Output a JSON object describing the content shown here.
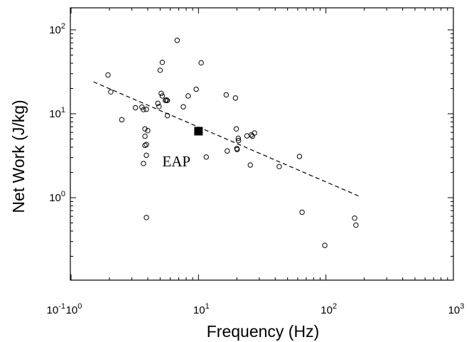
{
  "chart_data": {
    "type": "scatter",
    "xlabel": "Frequency (Hz)",
    "ylabel": "Net Work (J/kg)",
    "xscale": "log",
    "yscale": "log",
    "xlim": [
      1,
      1000
    ],
    "ylim": [
      0.1,
      200
    ],
    "grid": false,
    "x_ticks": [
      {
        "value": 1,
        "base": "10",
        "exp": "0"
      },
      {
        "value": 10,
        "base": "10",
        "exp": "1"
      },
      {
        "value": 100,
        "base": "10",
        "exp": "2"
      },
      {
        "value": 1000,
        "base": "10",
        "exp": "3"
      }
    ],
    "y_ticks": [
      {
        "value": 0.1,
        "base": "10",
        "exp": "-1"
      },
      {
        "value": 1,
        "base": "10",
        "exp": "0"
      },
      {
        "value": 10,
        "base": "10",
        "exp": "1"
      },
      {
        "value": 100,
        "base": "10",
        "exp": "2"
      }
    ],
    "series": [
      {
        "marker": "open-circle",
        "x": [
          1.95,
          2.05,
          2.5,
          3.2,
          3.6,
          3.7,
          3.7,
          3.8,
          3.8,
          3.8,
          3.9,
          3.9,
          3.9,
          3.9,
          4.0,
          4.8,
          4.9,
          5.0,
          5.1,
          5.2,
          5.2,
          5.5,
          5.6,
          5.7,
          5.7,
          6.8,
          7.6,
          8.3,
          9.6,
          10.5,
          11.5,
          16.5,
          16.8,
          19.5,
          19.8,
          20.0,
          20.1,
          20.5,
          20.6,
          24.0,
          25.5,
          26.0,
          26.5,
          27.5,
          43.0,
          62.0,
          65.0,
          98.0,
          168.0,
          172.0
        ],
        "y": [
          29.0,
          18.2,
          8.5,
          11.8,
          12.0,
          11.2,
          2.55,
          6.6,
          5.4,
          4.2,
          4.3,
          3.2,
          11.3,
          0.58,
          6.3,
          13.3,
          12.2,
          33.0,
          17.5,
          41.0,
          16.3,
          14.4,
          14.6,
          9.5,
          14.4,
          75.0,
          12.1,
          16.3,
          19.6,
          40.5,
          3.05,
          16.8,
          3.6,
          15.4,
          6.6,
          3.85,
          3.75,
          5.1,
          4.8,
          5.45,
          2.45,
          5.6,
          5.4,
          5.9,
          2.35,
          3.1,
          0.67,
          0.27,
          0.57,
          0.47
        ]
      },
      {
        "name": "EAP",
        "marker": "filled-square",
        "x": [
          10.0
        ],
        "y": [
          6.2
        ]
      }
    ],
    "fit_line": {
      "style": "dashed",
      "x": [
        1.5,
        180
      ],
      "y": [
        24.0,
        1.05
      ]
    },
    "annotations": [
      {
        "text": "EAP",
        "x": 5.2,
        "y": 2.35
      }
    ]
  }
}
